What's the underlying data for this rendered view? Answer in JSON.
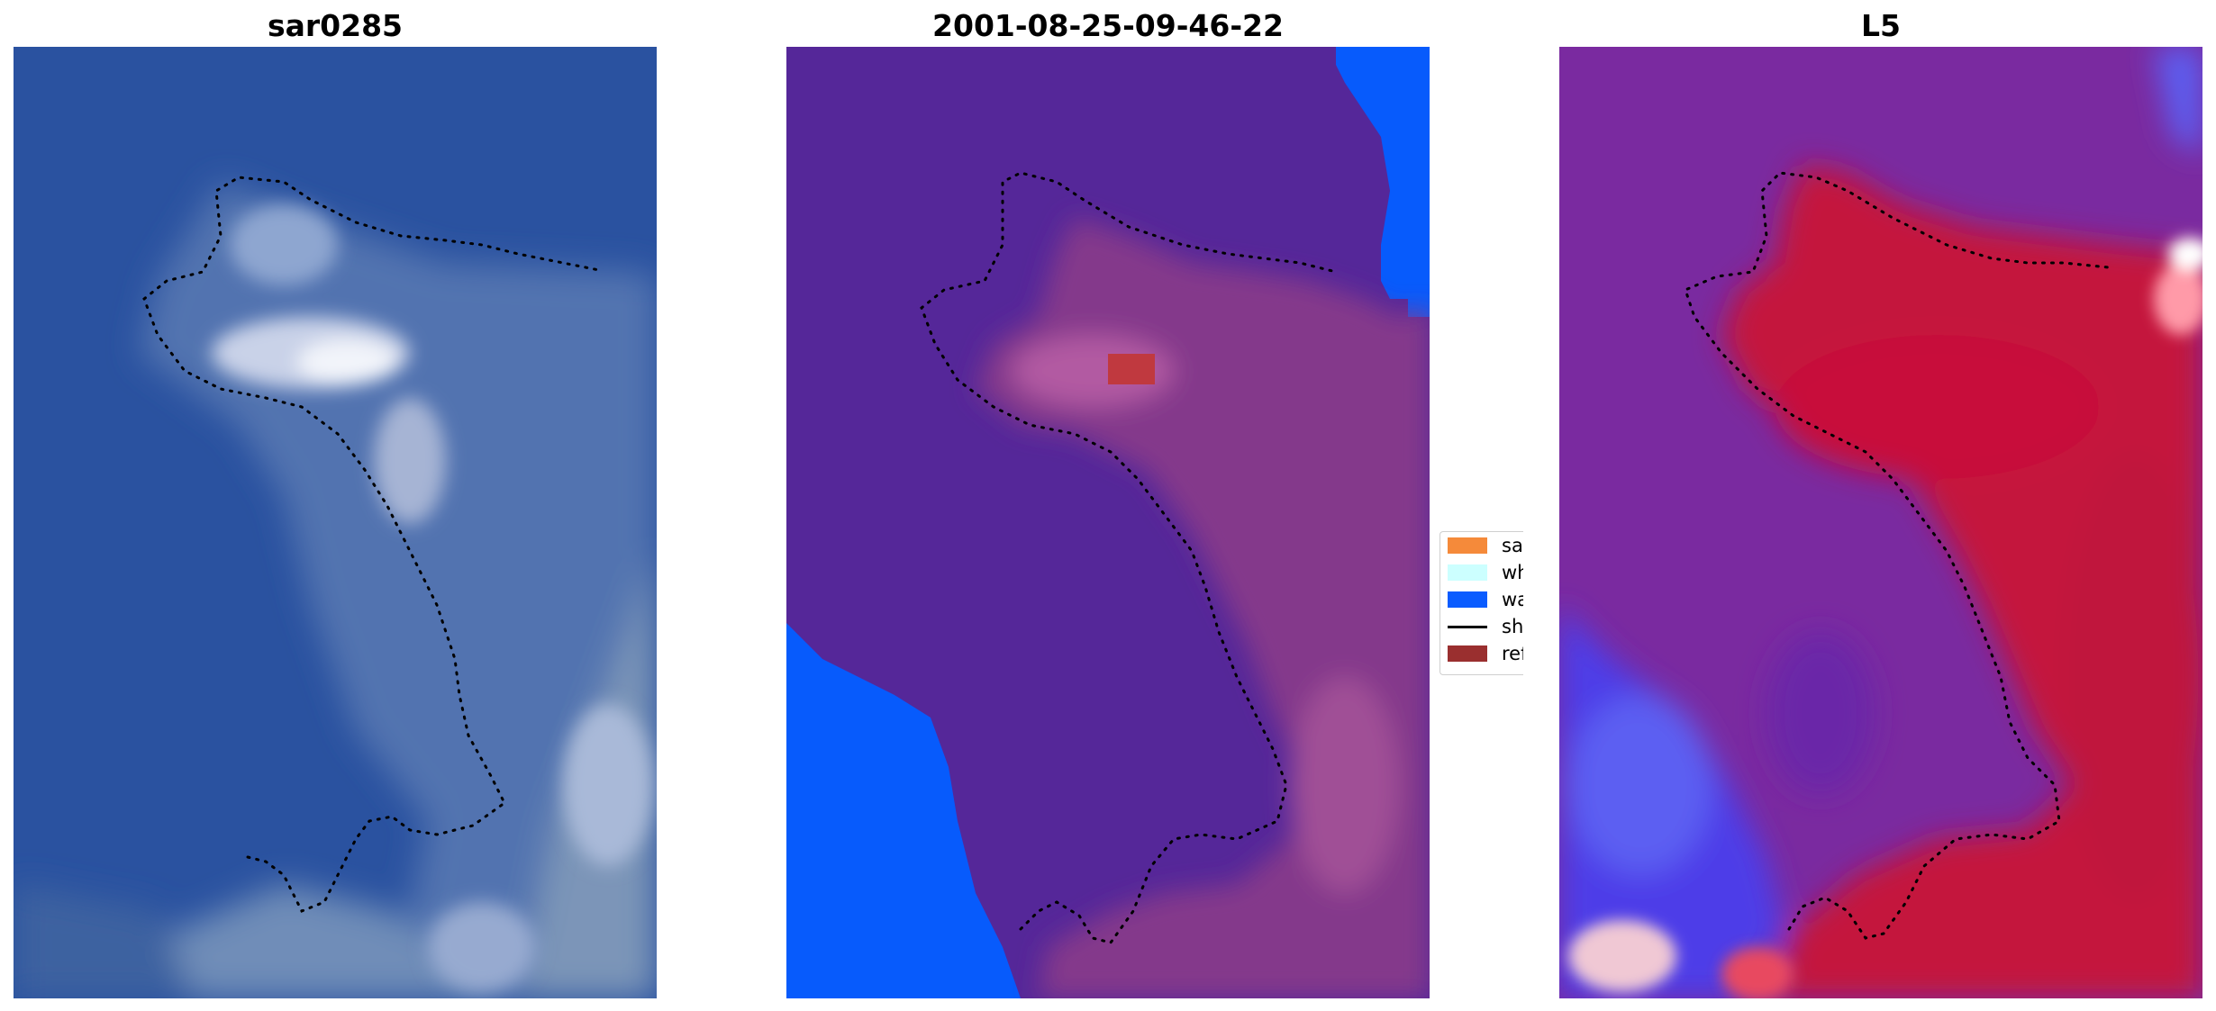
{
  "panels": [
    {
      "title": "sar0285"
    },
    {
      "title": "2001-08-25-09-46-22"
    },
    {
      "title": "L5"
    }
  ],
  "legend": {
    "items": [
      {
        "label": "sand",
        "color": "#f58a3a"
      },
      {
        "label": "whitewater",
        "color": "#ccffff"
      },
      {
        "label": "water",
        "color": "#0a5cff"
      },
      {
        "label": "shoreline",
        "color": "#000000"
      },
      {
        "label": "reference",
        "color": "#9a2f2f"
      }
    ]
  },
  "colors": {
    "rgb_water": "#2a52a0",
    "class_land": "#552799",
    "class_water": "#075bfc",
    "class_overlay": "#8a3a8a",
    "class_reference_patch": "#c0393f",
    "index_low": "#7a2aa0",
    "index_high": "#c4163c",
    "shoreline_dots": "#000000"
  }
}
